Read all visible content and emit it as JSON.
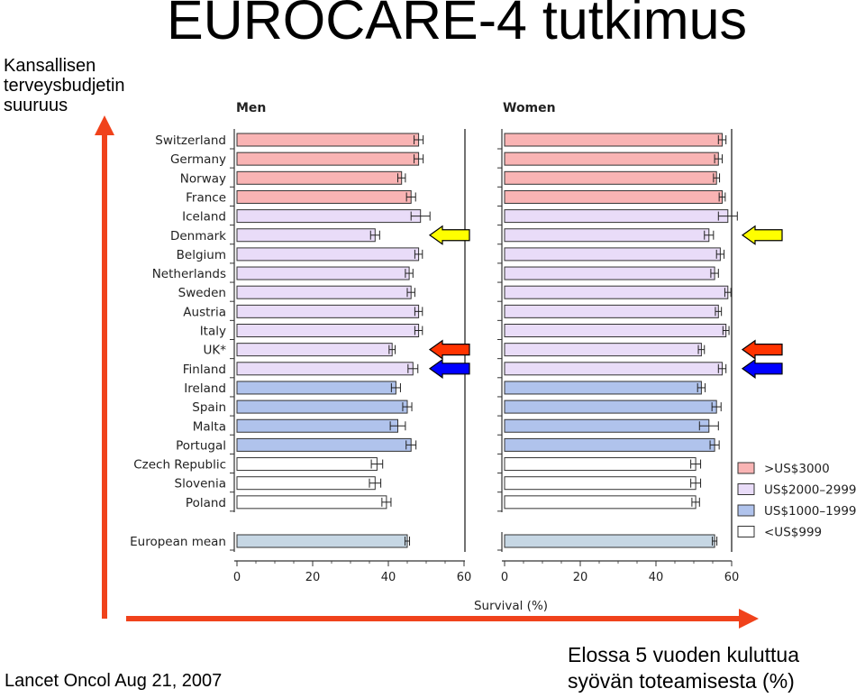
{
  "slide": {
    "title": "EUROCARE-4 tutkimus",
    "ylabel_lines": [
      "Kansallisen",
      "terveysbudjetin",
      "suuruus"
    ],
    "citation": "Lancet Oncol Aug 21, 2007",
    "xlabel_lines": [
      "Elossa 5 vuoden kuluttua",
      "syövän toteamisesta (%)"
    ]
  },
  "colors": {
    "high": "#f9b4b4",
    "upper_mid": "#e9dcf8",
    "lower_mid": "#b0c3ec",
    "low": "#ffffff",
    "mean": "#c6d7e4",
    "big_arrow": "#f0421b",
    "arrow_yellow": "#ffff00",
    "arrow_red": "#ff3300",
    "arrow_blue": "#0000ff"
  },
  "chart_data": {
    "type": "bar",
    "orientation": "horizontal",
    "xlabel": "Survival (%)",
    "xlim": [
      0,
      60
    ],
    "xticks": [
      0,
      20,
      40,
      60
    ],
    "categories": [
      "Switzerland",
      "Germany",
      "Norway",
      "France",
      "Iceland",
      "Denmark",
      "Belgium",
      "Netherlands",
      "Sweden",
      "Austria",
      "Italy",
      "UK*",
      "Finland",
      "Ireland",
      "Spain",
      "Malta",
      "Portugal",
      "Czech Republic",
      "Slovenia",
      "Poland",
      "European mean"
    ],
    "groups": [
      "high",
      "high",
      "high",
      "high",
      "upper_mid",
      "upper_mid",
      "upper_mid",
      "upper_mid",
      "upper_mid",
      "upper_mid",
      "upper_mid",
      "upper_mid",
      "upper_mid",
      "lower_mid",
      "lower_mid",
      "lower_mid",
      "lower_mid",
      "low",
      "low",
      "low",
      "mean"
    ],
    "series": [
      {
        "name": "Men",
        "values": [
          48,
          48,
          43.5,
          46,
          48.5,
          36.5,
          48,
          45.5,
          46,
          48,
          48,
          41,
          46.5,
          42,
          45,
          42.5,
          46,
          37,
          36.5,
          39.5,
          45
        ],
        "ci": [
          1.2,
          1.2,
          1,
          1.2,
          2.5,
          1.2,
          1,
          1,
          1,
          1,
          1,
          0.8,
          1.3,
          1.2,
          1.2,
          2,
          1.3,
          1.5,
          1.5,
          1.2,
          0.6
        ]
      },
      {
        "name": "Women",
        "values": [
          57.5,
          56.5,
          56,
          57.5,
          59,
          54,
          57,
          55.5,
          59,
          56.5,
          58.5,
          52,
          57.5,
          52,
          56,
          54,
          55.5,
          50.5,
          50.5,
          50.5,
          55.5
        ],
        "ci": [
          1,
          1,
          0.8,
          0.8,
          2.5,
          1.2,
          1,
          1,
          0.8,
          0.8,
          0.8,
          0.8,
          1,
          1,
          1.2,
          2.5,
          1.2,
          1.3,
          1.3,
          1,
          0.6
        ]
      }
    ],
    "legend": {
      "placement": "bottom-right",
      "entries": [
        {
          "label": ">US$3000",
          "group": "high"
        },
        {
          "label": "US$2000–2999",
          "group": "upper_mid"
        },
        {
          "label": "US$1000–1999",
          "group": "lower_mid"
        },
        {
          "label": "<US$999",
          "group": "low"
        }
      ]
    }
  },
  "annotations": {
    "arrows": [
      {
        "target": "Denmark",
        "color": "arrow_yellow"
      },
      {
        "target": "UK*",
        "color": "arrow_red"
      },
      {
        "target": "Finland",
        "color": "arrow_blue"
      }
    ]
  }
}
